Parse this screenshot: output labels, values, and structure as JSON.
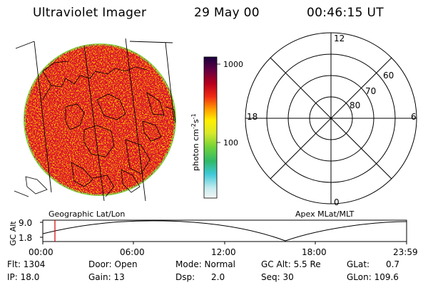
{
  "header": {
    "instrument": "Ultraviolet Imager",
    "date": "29 May 00",
    "time": "00:46:15 UT"
  },
  "colorbar": {
    "unit": "photon cm",
    "unit_exp1": "-2",
    "unit_s": "s",
    "unit_exp2": "-1",
    "ticks": [
      "1000",
      "100"
    ]
  },
  "polar_plot": {
    "title": "Apex MLat/MLT",
    "mlt_labels": [
      "12",
      "18",
      "6",
      "0"
    ],
    "lat_labels": [
      "60",
      "70",
      "80"
    ]
  },
  "globe": {
    "title": "Geographic Lat/Lon"
  },
  "altitude_plot": {
    "ylabel": "GC Alt",
    "y_ticks": [
      "9.0",
      "1.8"
    ],
    "x_ticks": [
      "00:00",
      "06:00",
      "12:00",
      "18:00",
      "23:59"
    ]
  },
  "info": {
    "flt": "Flt: 1304",
    "ip": "IP: 18.0",
    "door": "Door: Open",
    "gain": "Gain: 13",
    "mode": "Mode: Normal",
    "dsp": "Dsp:      2.0",
    "gcalt": "GC Alt: 5.5 Re",
    "seq": "Seq: 30",
    "glat": "GLat:      0.7",
    "glon": "GLon: 109.6"
  },
  "colors": {
    "image_base": "#e8241c",
    "marker": "#d00000"
  }
}
